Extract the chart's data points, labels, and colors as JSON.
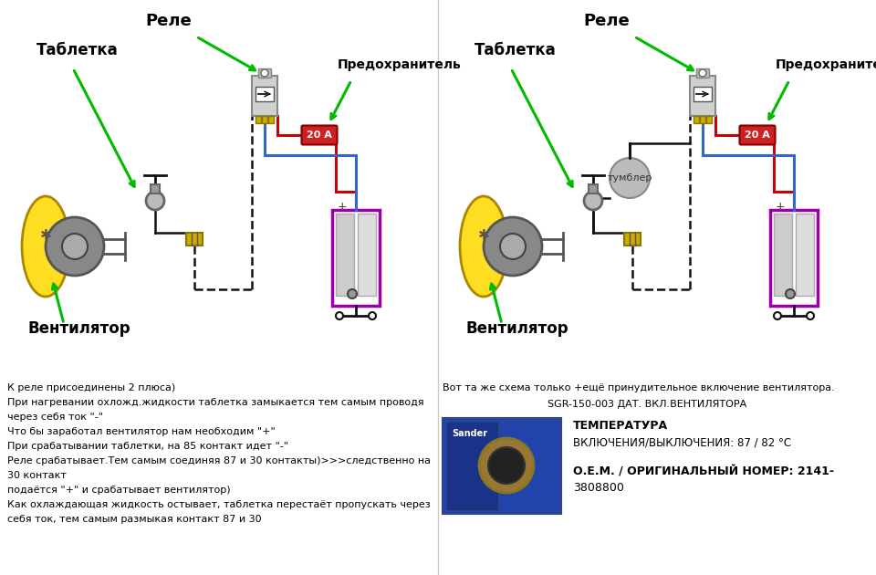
{
  "bg_color": "#ffffff",
  "divider_color": "#cccccc",
  "green_arrow": "#00bb00",
  "red_wire": "#cc0000",
  "blue_wire": "#3366cc",
  "black_wire": "#111111",
  "purple_border": "#9900aa",
  "yellow_fan": "#ffee44",
  "relay_body": "#cccccc",
  "relay_terminal": "#ccbb44",
  "fuse_red": "#cc2222",
  "tumbler_gray": "#aaaaaa",
  "left_labels": {
    "tabletka": "Таблетка",
    "rele": "Реле",
    "predohranitel": "Предохранитель",
    "ventilyator": "Вентилятор",
    "fuse_label": "20 А"
  },
  "right_labels": {
    "tabletka": "Таблетка",
    "rele": "Реле",
    "predohranitel": "Предохранитель",
    "ventilyator": "Вентилятор",
    "tumbler": "тумблер",
    "fuse_label": "20 А"
  },
  "bottom_text_left": [
    "К реле присоединены 2 плюса)",
    "При нагревании охложд.жидкости таблетка замыкается тем самым проводя",
    "через себя ток \"-\"",
    "Что бы заработал вентилятор нам необходим \"+\"",
    "При срабатывании таблетки, на 85 контакт идет \"-\"",
    "Реле срабатывает.Тем самым соединяя 87 и 30 контакты)>>>следственно на",
    "30 контакт",
    "подаётся \"+\" и срабатывает вентилятор)",
    "Как охлаждающая жидкость остывает, таблетка перестаёт пропускать через",
    "себя ток, тем самым размыкая контакт 87 и 30"
  ],
  "bottom_text_right_line1": "Вот та же схема только +ещё принудительное включение вентилятора.",
  "bottom_text_right_line2": "SGR-150-003 ДАТ. ВКЛ.ВЕНТИЛЯТОРА",
  "bottom_text_right_temp_title": "ТЕМПЕРАТУРА",
  "bottom_text_right_temp_val": "ВКЛЮЧЕНИЯ/ВЫКЛЮЧЕНИЯ: 87 / 82 °C",
  "bottom_text_right_oem_title": "О.Е.М. / ОРИГИНАЛЬНЫЙ НОМЕР: 2141-",
  "bottom_text_right_oem_val": "3808800"
}
